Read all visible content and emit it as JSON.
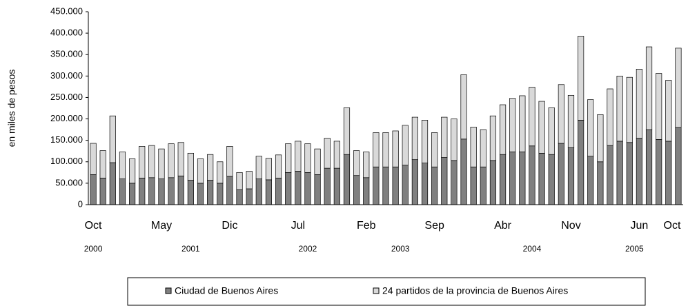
{
  "chart_data": {
    "type": "stacked_bar",
    "y_label": "en miles de pesos",
    "categories": [
      "Oct",
      null,
      null,
      null,
      null,
      null,
      null,
      "May",
      null,
      null,
      null,
      null,
      null,
      null,
      "Dic",
      null,
      null,
      null,
      null,
      null,
      null,
      "Jul",
      null,
      null,
      null,
      null,
      null,
      null,
      "Feb",
      null,
      null,
      null,
      null,
      null,
      null,
      "Sep",
      null,
      null,
      null,
      null,
      null,
      null,
      "Abr",
      null,
      null,
      null,
      null,
      null,
      null,
      "Nov",
      null,
      null,
      null,
      null,
      null,
      null,
      "Jun",
      null,
      null,
      null,
      "Oct"
    ],
    "years": [
      "2000",
      "2001",
      "2002",
      "2003",
      "2004",
      "2005"
    ],
    "series": [
      {
        "name": "Ciudad de Buenos Aires",
        "color": "#808080",
        "values": [
          70000,
          62000,
          98000,
          60000,
          50000,
          62000,
          63000,
          60000,
          63000,
          67000,
          57000,
          50000,
          57000,
          50000,
          66000,
          35000,
          37000,
          60000,
          58000,
          62000,
          75000,
          78000,
          75000,
          70000,
          85000,
          85000,
          117000,
          68000,
          63000,
          88000,
          88000,
          88000,
          92000,
          105000,
          97000,
          88000,
          110000,
          103000,
          153000,
          88000,
          88000,
          103000,
          117000,
          123000,
          123000,
          137000,
          120000,
          117000,
          143000,
          133000,
          197000,
          113000,
          100000,
          138000,
          148000,
          145000,
          155000,
          175000,
          152000,
          148000,
          180000
        ]
      },
      {
        "name": "24 partidos de la provincia de Buenos Aires",
        "color": "#d9d9d9",
        "values": [
          73000,
          64000,
          109000,
          63000,
          57000,
          74000,
          75000,
          70000,
          79000,
          78000,
          63000,
          57000,
          60000,
          50000,
          70000,
          40000,
          41000,
          53000,
          50000,
          54000,
          67000,
          70000,
          67000,
          60000,
          70000,
          63000,
          109000,
          58000,
          60000,
          80000,
          80000,
          84000,
          93000,
          99000,
          100000,
          80000,
          94000,
          97000,
          150000,
          93000,
          87000,
          104000,
          116000,
          125000,
          131000,
          137000,
          121000,
          109000,
          137000,
          122000,
          196000,
          132000,
          110000,
          132000,
          152000,
          152000,
          161000,
          193000,
          154000,
          142000,
          185000
        ]
      }
    ],
    "ylim": [
      0,
      450000
    ],
    "yticks": [
      0,
      {
        "value": 50000,
        "label": "50.000"
      },
      {
        "value": 100000,
        "label": "100.000"
      },
      {
        "value": 150000,
        "label": "150.000"
      },
      {
        "value": 200000,
        "label": "200.000"
      },
      {
        "value": 250000,
        "label": "250.000"
      },
      {
        "value": 300000,
        "label": "300.000"
      },
      {
        "value": 350000,
        "label": "350.000"
      },
      {
        "value": 400000,
        "label": "400.000"
      },
      {
        "value": 450000,
        "label": "450.000"
      }
    ]
  }
}
